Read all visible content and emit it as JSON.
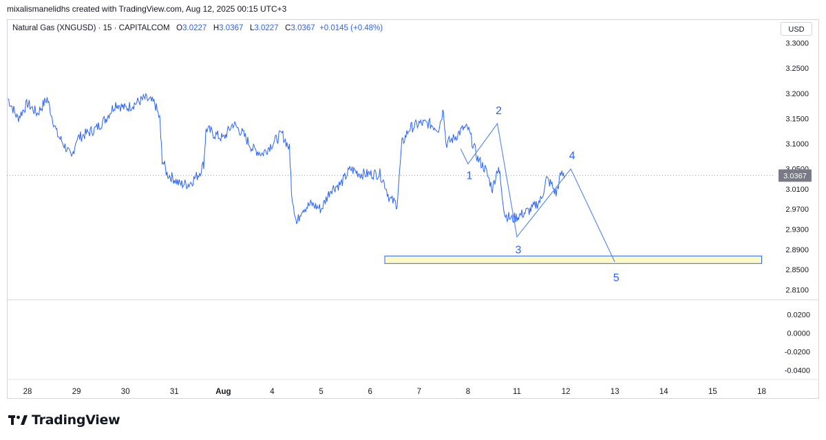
{
  "header": {
    "credit": "mixalismanelidhs created with TradingView.com, Aug 12, 2025 00:15 UTC+3"
  },
  "legend": {
    "symbol": "Natural Gas (XNGUSD) · 15 · CAPITALCOM",
    "open_label": "O",
    "open": "3.0227",
    "high_label": "H",
    "high": "3.0367",
    "low_label": "L",
    "low": "3.0227",
    "close_label": "C",
    "close": "3.0367",
    "change": "+0.0145 (+0.48%)"
  },
  "currency": "USD",
  "brand": {
    "name": "TradingView"
  },
  "colors": {
    "line": "#2962ff",
    "wave": "#5b8def",
    "zone_fill": "#fff9c4",
    "zone_border": "#2962ff"
  },
  "chart_data": {
    "type": "line",
    "ylim": [
      2.79,
      3.32
    ],
    "y_ticks": [
      "3.3000",
      "3.2500",
      "3.2000",
      "3.1500",
      "3.1000",
      "3.0500",
      "3.0100",
      "2.9700",
      "2.9300",
      "2.8900",
      "2.8500",
      "2.8100"
    ],
    "last_price": "3.0367",
    "x_ticks": [
      {
        "label": "28",
        "t": 0
      },
      {
        "label": "29",
        "t": 1
      },
      {
        "label": "30",
        "t": 2
      },
      {
        "label": "31",
        "t": 3
      },
      {
        "label": "Aug",
        "t": 4,
        "bold": true
      },
      {
        "label": "4",
        "t": 5
      },
      {
        "label": "5",
        "t": 6
      },
      {
        "label": "6",
        "t": 7
      },
      {
        "label": "7",
        "t": 8
      },
      {
        "label": "8",
        "t": 9
      },
      {
        "label": "11",
        "t": 10
      },
      {
        "label": "12",
        "t": 11
      },
      {
        "label": "13",
        "t": 12
      },
      {
        "label": "14",
        "t": 13
      },
      {
        "label": "15",
        "t": 14
      },
      {
        "label": "18",
        "t": 15
      }
    ],
    "series": [
      {
        "values": [
          [
            -0.4,
            3.19
          ],
          [
            -0.2,
            3.15
          ],
          [
            0.0,
            3.18
          ],
          [
            0.2,
            3.16
          ],
          [
            0.4,
            3.19
          ],
          [
            0.6,
            3.12
          ],
          [
            0.8,
            3.09
          ],
          [
            0.9,
            3.07
          ],
          [
            1.0,
            3.11
          ],
          [
            1.2,
            3.12
          ],
          [
            1.4,
            3.13
          ],
          [
            1.6,
            3.15
          ],
          [
            1.8,
            3.18
          ],
          [
            2.0,
            3.17
          ],
          [
            2.2,
            3.18
          ],
          [
            2.4,
            3.19
          ],
          [
            2.6,
            3.18
          ],
          [
            2.7,
            3.15
          ],
          [
            2.75,
            3.07
          ],
          [
            2.85,
            3.04
          ],
          [
            3.0,
            3.03
          ],
          [
            3.1,
            3.02
          ],
          [
            3.3,
            3.02
          ],
          [
            3.5,
            3.04
          ],
          [
            3.6,
            3.06
          ],
          [
            3.65,
            3.13
          ],
          [
            3.8,
            3.12
          ],
          [
            4.0,
            3.11
          ],
          [
            4.2,
            3.14
          ],
          [
            4.4,
            3.12
          ],
          [
            4.6,
            3.09
          ],
          [
            4.8,
            3.08
          ],
          [
            5.0,
            3.1
          ],
          [
            5.2,
            3.12
          ],
          [
            5.35,
            3.09
          ],
          [
            5.4,
            3.0
          ],
          [
            5.5,
            2.94
          ],
          [
            5.6,
            2.97
          ],
          [
            5.8,
            2.98
          ],
          [
            6.0,
            2.97
          ],
          [
            6.2,
            3.01
          ],
          [
            6.4,
            3.02
          ],
          [
            6.6,
            3.05
          ],
          [
            6.8,
            3.04
          ],
          [
            7.0,
            3.04
          ],
          [
            7.2,
            3.04
          ],
          [
            7.3,
            3.02
          ],
          [
            7.4,
            2.99
          ],
          [
            7.55,
            2.98
          ],
          [
            7.65,
            3.1
          ],
          [
            7.8,
            3.13
          ],
          [
            8.0,
            3.14
          ],
          [
            8.2,
            3.14
          ],
          [
            8.4,
            3.13
          ],
          [
            8.5,
            3.17
          ],
          [
            8.55,
            3.1
          ],
          [
            8.7,
            3.11
          ],
          [
            8.9,
            3.13
          ],
          [
            9.0,
            3.13
          ],
          [
            9.1,
            3.1
          ],
          [
            9.2,
            3.07
          ],
          [
            9.35,
            3.05
          ],
          [
            9.5,
            3.01
          ],
          [
            9.6,
            3.05
          ],
          [
            9.65,
            3.04
          ],
          [
            9.75,
            2.96
          ],
          [
            9.9,
            2.95
          ],
          [
            10.1,
            2.96
          ],
          [
            10.3,
            2.97
          ],
          [
            10.5,
            2.99
          ],
          [
            10.6,
            3.03
          ],
          [
            10.7,
            3.02
          ],
          [
            10.8,
            3.0
          ],
          [
            10.9,
            3.04
          ],
          [
            11.0,
            3.0367
          ]
        ]
      }
    ],
    "oscillator": {
      "ylim": [
        -0.05,
        0.035
      ],
      "y_ticks": [
        "0.0200",
        "0.0000",
        "-0.0200",
        "-0.0400"
      ]
    },
    "annotations": {
      "wave_labels": [
        "1",
        "2",
        "3",
        "4",
        "5"
      ],
      "wave_points": [
        [
          9.0,
          3.06
        ],
        [
          9.6,
          3.14
        ],
        [
          10.0,
          2.915
        ],
        [
          11.1,
          3.05
        ],
        [
          12.0,
          2.865
        ]
      ],
      "target_zone": {
        "t_from": 7.3,
        "t_to": 15.0,
        "price_from": 2.862,
        "price_to": 2.877
      }
    }
  }
}
